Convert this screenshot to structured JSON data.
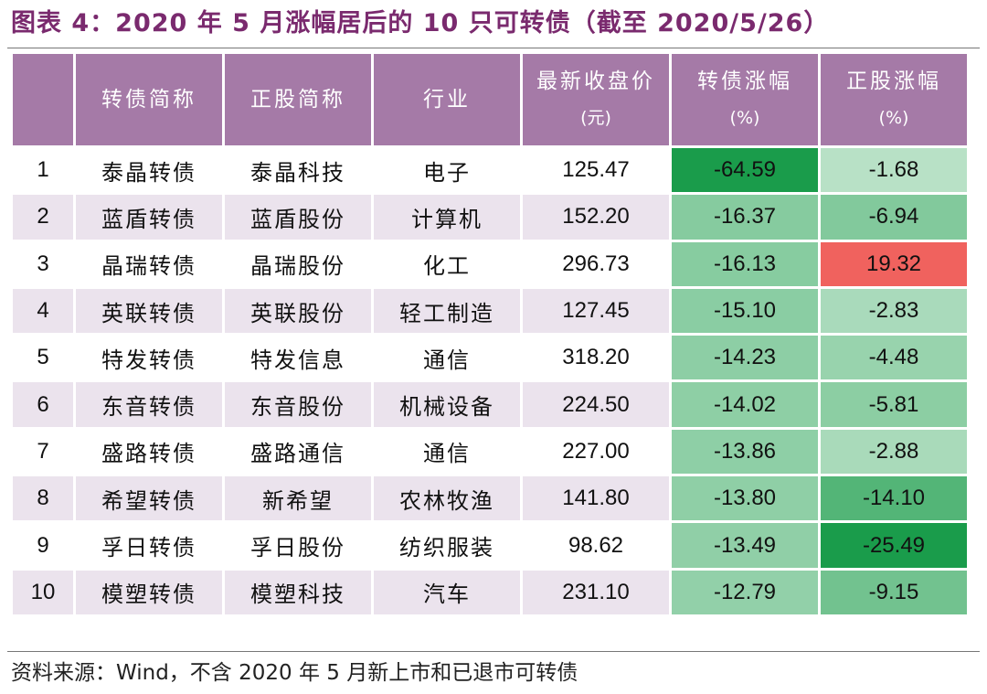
{
  "title": "图表 4：2020 年 5 月涨幅居后的 10 只可转债（截至 2020/5/26）",
  "headers": {
    "rank": "",
    "bond_name": "转债简称",
    "stock_name": "正股简称",
    "industry": "行业",
    "close_price": "最新收盘价",
    "close_price_unit": "(元)",
    "bond_change": "转债涨幅",
    "bond_change_unit": "(%)",
    "stock_change": "正股涨幅",
    "stock_change_unit": "(%)"
  },
  "rows": [
    {
      "rank": "1",
      "bond": "泰晶转债",
      "stock": "泰晶科技",
      "industry": "电子",
      "price": "125.47",
      "bond_chg": "-64.59",
      "stock_chg": "-1.68"
    },
    {
      "rank": "2",
      "bond": "蓝盾转债",
      "stock": "蓝盾股份",
      "industry": "计算机",
      "price": "152.20",
      "bond_chg": "-16.37",
      "stock_chg": "-6.94"
    },
    {
      "rank": "3",
      "bond": "晶瑞转债",
      "stock": "晶瑞股份",
      "industry": "化工",
      "price": "296.73",
      "bond_chg": "-16.13",
      "stock_chg": "19.32"
    },
    {
      "rank": "4",
      "bond": "英联转债",
      "stock": "英联股份",
      "industry": "轻工制造",
      "price": "127.45",
      "bond_chg": "-15.10",
      "stock_chg": "-2.83"
    },
    {
      "rank": "5",
      "bond": "特发转债",
      "stock": "特发信息",
      "industry": "通信",
      "price": "318.20",
      "bond_chg": "-14.23",
      "stock_chg": "-4.48"
    },
    {
      "rank": "6",
      "bond": "东音转债",
      "stock": "东音股份",
      "industry": "机械设备",
      "price": "224.50",
      "bond_chg": "-14.02",
      "stock_chg": "-5.81"
    },
    {
      "rank": "7",
      "bond": "盛路转债",
      "stock": "盛路通信",
      "industry": "通信",
      "price": "227.00",
      "bond_chg": "-13.86",
      "stock_chg": "-2.88"
    },
    {
      "rank": "8",
      "bond": "希望转债",
      "stock": "新希望",
      "industry": "农林牧渔",
      "price": "141.80",
      "bond_chg": "-13.80",
      "stock_chg": "-14.10"
    },
    {
      "rank": "9",
      "bond": "孚日转债",
      "stock": "孚日股份",
      "industry": "纺织服装",
      "price": "98.62",
      "bond_chg": "-13.49",
      "stock_chg": "-25.49"
    },
    {
      "rank": "10",
      "bond": "模塑转债",
      "stock": "模塑科技",
      "industry": "汽车",
      "price": "231.10",
      "bond_chg": "-12.79",
      "stock_chg": "-9.15"
    }
  ],
  "colors": {
    "title": "#7a2a6e",
    "header_bg": "#a57aa7",
    "stripe": "#ebe3ed",
    "negative_strong": "#1a9c4b",
    "negative_light": "#e6f5ea",
    "positive_strong": "#f0625e"
  },
  "source": "资料来源：Wind，不含 2020 年 5 月新上市和已退市可转债"
}
